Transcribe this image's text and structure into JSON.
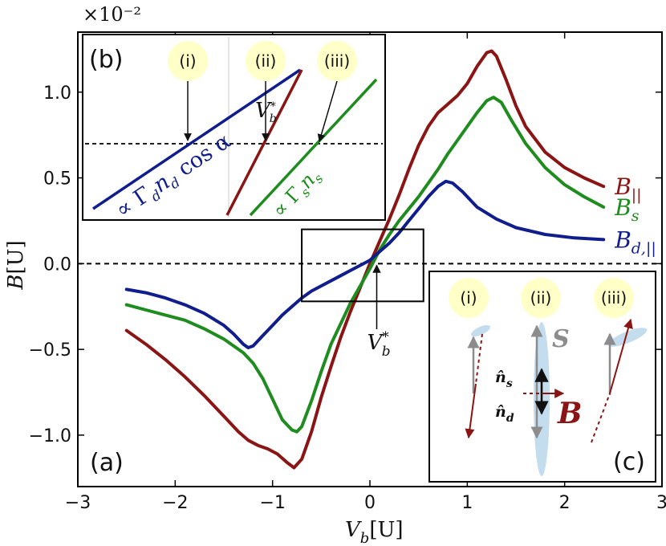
{
  "chart_data": {
    "type": "line",
    "panel_main": {
      "label": "(a)",
      "xlabel": "V_b[U]",
      "ylabel": "B[U]",
      "scale_label": "×10⁻²",
      "xlim": [
        -3,
        3
      ],
      "ylim": [
        -1.3,
        1.35
      ],
      "xticks": [
        -3,
        -2,
        -1,
        0,
        1,
        2,
        3
      ],
      "xtick_labels": [
        "−3",
        "−2",
        "−1",
        "0",
        "1",
        "2",
        "3"
      ],
      "yticks": [
        -1.0,
        -0.5,
        0.0,
        0.5,
        1.0
      ],
      "ytick_labels": [
        "−1.0",
        "−0.5",
        "0.0",
        "0.5",
        "1.0"
      ],
      "zero_line": "dashed",
      "zoom_box": {
        "x": [
          -0.7,
          0.55
        ],
        "y": [
          -0.22,
          0.2
        ]
      },
      "vb_star": {
        "label": "V*_b",
        "x": 0.07
      },
      "series": [
        {
          "name": "B_||",
          "label_main": "B",
          "label_sub": "||",
          "color": "#8b1414",
          "x": [
            -2.5,
            -2.3,
            -2.1,
            -1.9,
            -1.7,
            -1.5,
            -1.35,
            -1.25,
            -1.15,
            -1.05,
            -0.95,
            -0.85,
            -0.78,
            -0.7,
            -0.6,
            -0.5,
            -0.4,
            -0.3,
            -0.2,
            -0.1,
            0.0,
            0.1,
            0.2,
            0.3,
            0.4,
            0.5,
            0.6,
            0.7,
            0.8,
            0.9,
            1.0,
            1.1,
            1.2,
            1.25,
            1.3,
            1.4,
            1.5,
            1.6,
            1.8,
            2.0,
            2.2,
            2.4
          ],
          "y": [
            -0.39,
            -0.47,
            -0.56,
            -0.66,
            -0.77,
            -0.89,
            -0.98,
            -1.03,
            -1.06,
            -1.08,
            -1.11,
            -1.16,
            -1.19,
            -1.14,
            -0.98,
            -0.78,
            -0.6,
            -0.43,
            -0.28,
            -0.14,
            0.0,
            0.13,
            0.26,
            0.4,
            0.55,
            0.69,
            0.8,
            0.88,
            0.93,
            0.98,
            1.05,
            1.15,
            1.23,
            1.24,
            1.21,
            1.07,
            0.92,
            0.8,
            0.65,
            0.56,
            0.5,
            0.45
          ]
        },
        {
          "name": "B_s",
          "label_main": "B",
          "label_sub": "s",
          "color": "#1e8c1e",
          "x": [
            -2.5,
            -2.3,
            -2.1,
            -1.9,
            -1.7,
            -1.5,
            -1.3,
            -1.2,
            -1.1,
            -1.0,
            -0.9,
            -0.8,
            -0.75,
            -0.7,
            -0.6,
            -0.5,
            -0.4,
            -0.3,
            -0.2,
            -0.1,
            0.0,
            0.1,
            0.2,
            0.3,
            0.4,
            0.5,
            0.6,
            0.7,
            0.8,
            0.9,
            1.0,
            1.1,
            1.2,
            1.27,
            1.35,
            1.45,
            1.6,
            1.8,
            2.0,
            2.2,
            2.4
          ],
          "y": [
            -0.24,
            -0.27,
            -0.3,
            -0.33,
            -0.38,
            -0.44,
            -0.52,
            -0.58,
            -0.67,
            -0.79,
            -0.91,
            -0.97,
            -0.98,
            -0.95,
            -0.8,
            -0.63,
            -0.47,
            -0.35,
            -0.23,
            -0.13,
            -0.03,
            0.08,
            0.17,
            0.25,
            0.32,
            0.39,
            0.47,
            0.55,
            0.64,
            0.72,
            0.8,
            0.88,
            0.95,
            0.97,
            0.94,
            0.84,
            0.7,
            0.56,
            0.46,
            0.39,
            0.33
          ]
        },
        {
          "name": "B_d,||",
          "label_main": "B",
          "label_sub": "d,||",
          "color": "#0f1e8c",
          "x": [
            -2.5,
            -2.3,
            -2.1,
            -1.9,
            -1.7,
            -1.5,
            -1.4,
            -1.3,
            -1.25,
            -1.2,
            -1.1,
            -1.0,
            -0.9,
            -0.8,
            -0.7,
            -0.6,
            -0.5,
            -0.4,
            -0.3,
            -0.2,
            -0.1,
            0.0,
            0.1,
            0.2,
            0.3,
            0.4,
            0.5,
            0.6,
            0.7,
            0.78,
            0.85,
            0.95,
            1.1,
            1.3,
            1.5,
            1.8,
            2.1,
            2.4
          ],
          "y": [
            -0.15,
            -0.17,
            -0.2,
            -0.24,
            -0.29,
            -0.36,
            -0.41,
            -0.47,
            -0.49,
            -0.48,
            -0.42,
            -0.36,
            -0.3,
            -0.25,
            -0.2,
            -0.16,
            -0.13,
            -0.1,
            -0.07,
            -0.04,
            -0.01,
            0.02,
            0.07,
            0.12,
            0.18,
            0.25,
            0.32,
            0.39,
            0.45,
            0.48,
            0.47,
            0.42,
            0.33,
            0.26,
            0.21,
            0.17,
            0.15,
            0.14
          ]
        }
      ]
    },
    "panel_b": {
      "label": "(b)",
      "markers": [
        "(i)",
        "(ii)",
        "(iii)"
      ],
      "vb_star": "V*_b",
      "blue_label": "∝ Γ_d n_d cos α",
      "green_label": "∝ Γ_s n_s",
      "colors": {
        "blue": "#0f1e8c",
        "red": "#8b1414",
        "green": "#1e8c1e"
      }
    },
    "panel_c": {
      "label": "(c)",
      "markers": [
        "(i)",
        "(ii)",
        "(iii)"
      ],
      "S_label": "S",
      "ns_label": "n̂_s",
      "nd_label": "n̂_d",
      "B_label": "B",
      "colors": {
        "S": "#8c8c8c",
        "B": "#8b1414",
        "disk": "#c3dcee",
        "marker_fill": "#ffffc8"
      }
    }
  }
}
